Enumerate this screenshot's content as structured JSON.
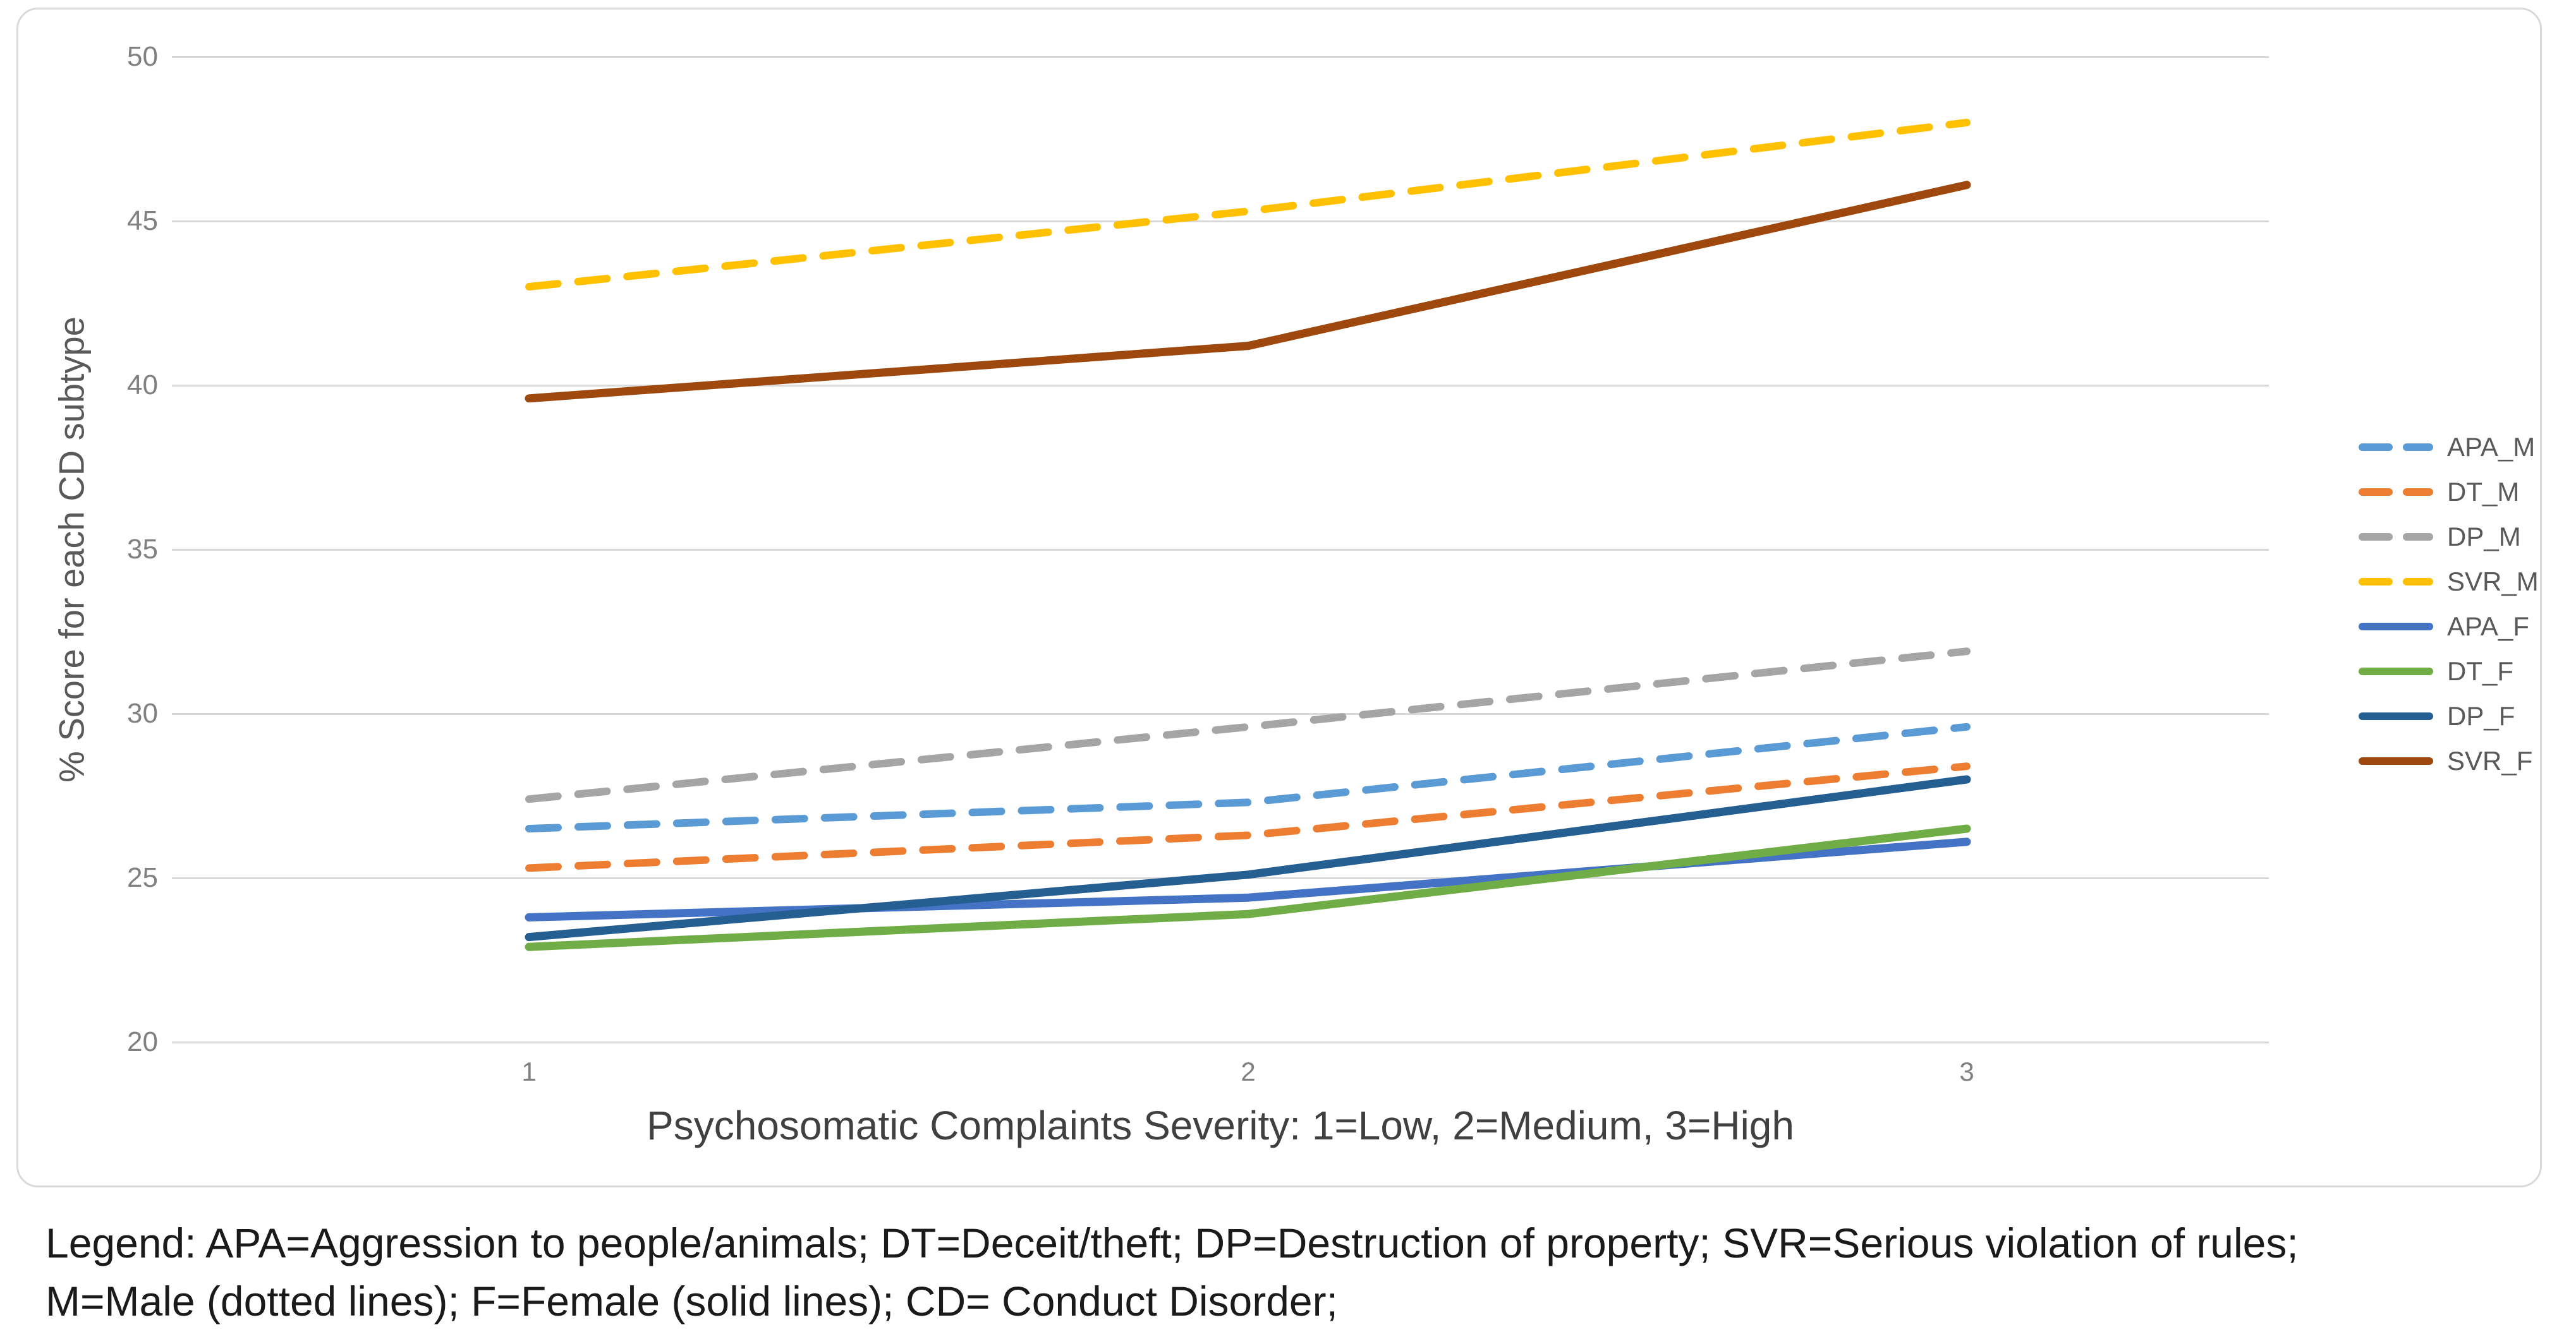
{
  "chart_data": {
    "type": "line",
    "title": "",
    "x": [
      1,
      2,
      3
    ],
    "x_tick_labels": [
      "1",
      "2",
      "3"
    ],
    "xlabel": "Psychosomatic Complaints Severity: 1=Low, 2=Medium, 3=High",
    "ylabel": "% Score for each CD subtype",
    "ylim": [
      20,
      50
    ],
    "yticks": [
      50,
      45,
      40,
      35,
      30,
      25,
      20
    ],
    "grid": true,
    "legend_position": "right",
    "series": [
      {
        "name": "APA_M",
        "style": "dashed",
        "color": "#5B9BD5",
        "values": [
          26.5,
          27.3,
          29.6
        ]
      },
      {
        "name": "DT_M",
        "style": "dashed",
        "color": "#ED7D31",
        "values": [
          25.3,
          26.3,
          28.4
        ]
      },
      {
        "name": "DP_M",
        "style": "dashed",
        "color": "#A5A5A5",
        "values": [
          27.4,
          29.6,
          31.9
        ]
      },
      {
        "name": "SVR_M",
        "style": "dashed",
        "color": "#FFC000",
        "values": [
          43.0,
          45.3,
          48.0
        ]
      },
      {
        "name": "APA_F",
        "style": "solid",
        "color": "#4472C4",
        "values": [
          23.8,
          24.4,
          26.1
        ]
      },
      {
        "name": "DT_F",
        "style": "solid",
        "color": "#70AD47",
        "values": [
          22.9,
          23.9,
          26.5
        ]
      },
      {
        "name": "DP_F",
        "style": "solid",
        "color": "#255E91",
        "values": [
          23.2,
          25.1,
          28.0
        ]
      },
      {
        "name": "SVR_F",
        "style": "solid",
        "color": "#9E480E",
        "values": [
          39.6,
          41.2,
          46.1
        ]
      }
    ]
  },
  "footnote": {
    "line1": "Legend: APA=Aggression to people/animals; DT=Deceit/theft; DP=Destruction of property; SVR=Serious violation of rules;",
    "line2": "M=Male (dotted lines); F=Female (solid lines); CD= Conduct Disorder;"
  },
  "colors": {
    "gridline": "#D9D9D9",
    "chart_border": "#D9D9D9",
    "tick_label": "#808080",
    "axis_title": "#595959",
    "footnote_text": "#1A1A1A"
  }
}
